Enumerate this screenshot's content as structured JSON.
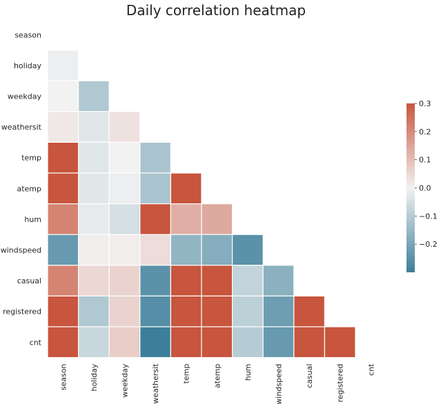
{
  "chart_data": {
    "type": "heatmap",
    "title": "Daily correlation heatmap",
    "xlabel": "",
    "ylabel": "",
    "mask": "upper-triangle-including-diagonal",
    "variables": [
      "season",
      "holiday",
      "weekday",
      "weathersit",
      "temp",
      "atemp",
      "hum",
      "windspeed",
      "casual",
      "registered",
      "cnt"
    ],
    "matrix": [
      [
        null,
        null,
        null,
        null,
        null,
        null,
        null,
        null,
        null,
        null,
        null
      ],
      [
        -0.01,
        null,
        null,
        null,
        null,
        null,
        null,
        null,
        null,
        null,
        null
      ],
      [
        0.0,
        -0.11,
        null,
        null,
        null,
        null,
        null,
        null,
        null,
        null,
        null
      ],
      [
        0.02,
        -0.03,
        0.03,
        null,
        null,
        null,
        null,
        null,
        null,
        null,
        null
      ],
      [
        0.33,
        -0.03,
        0.0,
        -0.12,
        null,
        null,
        null,
        null,
        null,
        null,
        null
      ],
      [
        0.34,
        -0.03,
        -0.01,
        -0.12,
        0.99,
        null,
        null,
        null,
        null,
        null,
        null
      ],
      [
        0.21,
        -0.02,
        -0.05,
        0.59,
        0.13,
        0.14,
        null,
        null,
        null,
        null,
        null
      ],
      [
        -0.23,
        0.01,
        0.01,
        0.04,
        -0.16,
        -0.18,
        -0.25,
        null,
        null,
        null,
        null
      ],
      [
        0.21,
        0.05,
        0.06,
        -0.25,
        0.54,
        0.54,
        -0.08,
        -0.17,
        null,
        null,
        null
      ],
      [
        0.41,
        -0.11,
        0.06,
        -0.26,
        0.54,
        0.54,
        -0.09,
        -0.22,
        0.4,
        null,
        null
      ],
      [
        0.41,
        -0.07,
        0.07,
        -0.3,
        0.63,
        0.63,
        -0.1,
        -0.23,
        0.67,
        0.95,
        null
      ]
    ],
    "colorbar": {
      "vmin": -0.3,
      "vmax": 0.3,
      "ticks": [
        "0.3",
        "0.2",
        "0.1",
        "0.0",
        "−0.1",
        "−0.2"
      ],
      "tick_values": [
        0.3,
        0.2,
        0.1,
        0.0,
        -0.1,
        -0.2
      ]
    },
    "colormap": {
      "low": "#3d7f9a",
      "mid": "#f2f2f2",
      "high": "#c8553d"
    },
    "grid": false,
    "cell_border_color": "#ffffff"
  }
}
